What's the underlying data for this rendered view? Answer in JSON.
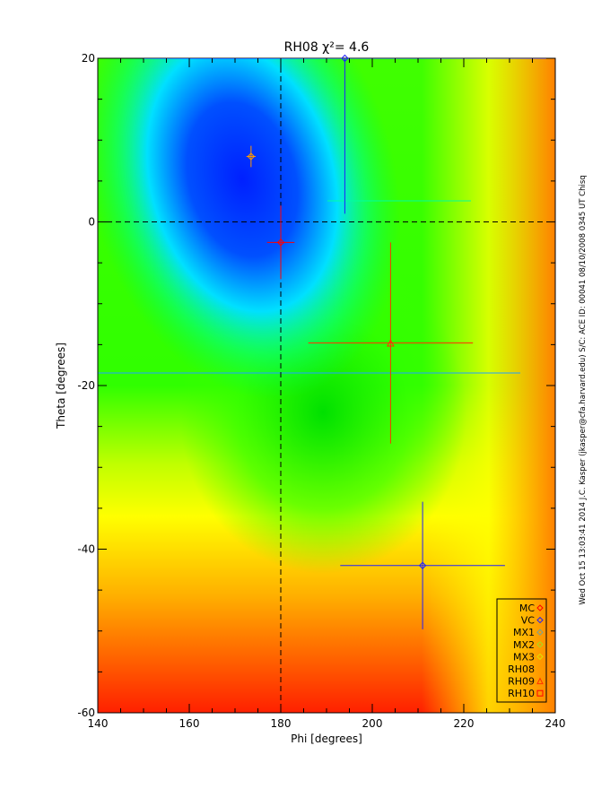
{
  "chart_data": {
    "type": "scatter",
    "title": "RH08 χ²=  4.6",
    "x_label": "Phi [degrees]",
    "y_label": "Theta [degrees]",
    "side_note": "Wed Oct 15 13:03:41 2014   J.C. Kasper (jkasper@cfa.harvard.edu)   S/C: ACE ID: 00041 08/10/2008   0345 UT Chisq",
    "xlim": [
      140,
      240
    ],
    "xticks": [
      140,
      160,
      180,
      200,
      220,
      240
    ],
    "ylim": [
      -60,
      20
    ],
    "yticks": [
      -60,
      -40,
      -20,
      0,
      20
    ],
    "vlines": [
      180
    ],
    "hlines": [
      0
    ],
    "legend": "lower right",
    "series": [
      {
        "name": "MC",
        "color": "#ff0000",
        "marker": "diamond",
        "x": [
          180
        ],
        "y": [
          -2.5
        ],
        "xerr": [
          3
        ],
        "yerr": [
          4.5
        ]
      },
      {
        "name": "VC",
        "color": "#2020ff",
        "marker": "diamond",
        "x": [
          211,
          194
        ],
        "y": [
          -42,
          20
        ],
        "xerr": [
          18,
          44
        ],
        "yerr": [
          7.8,
          19
        ]
      },
      {
        "name": "MX1",
        "color": "#70a0a0",
        "marker": "diamond",
        "x": [],
        "y": [],
        "xerr": [],
        "yerr": []
      },
      {
        "name": "MX2",
        "color": "#a0e020",
        "marker": "diamond",
        "x": [],
        "y": [],
        "xerr": [],
        "yerr": []
      },
      {
        "name": "MX3",
        "color": "#e0e000",
        "marker": "diamond",
        "x": [],
        "y": [],
        "xerr": [],
        "yerr": []
      },
      {
        "name": "RH08",
        "color": "#ff9900",
        "marker": "diamond",
        "x": [
          173.5
        ],
        "y": [
          8
        ],
        "xerr": [
          1
        ],
        "yerr": [
          1.3
        ]
      },
      {
        "name": "RH09",
        "color": "#ff3300",
        "marker": "triangle",
        "x": [
          204
        ],
        "y": [
          -14.8
        ],
        "xerr": [
          18
        ],
        "yerr": [
          12.3
        ]
      },
      {
        "name": "RH10",
        "color": "#ff0000",
        "marker": "square",
        "x": [],
        "y": [],
        "xerr": [],
        "yerr": []
      }
    ]
  }
}
